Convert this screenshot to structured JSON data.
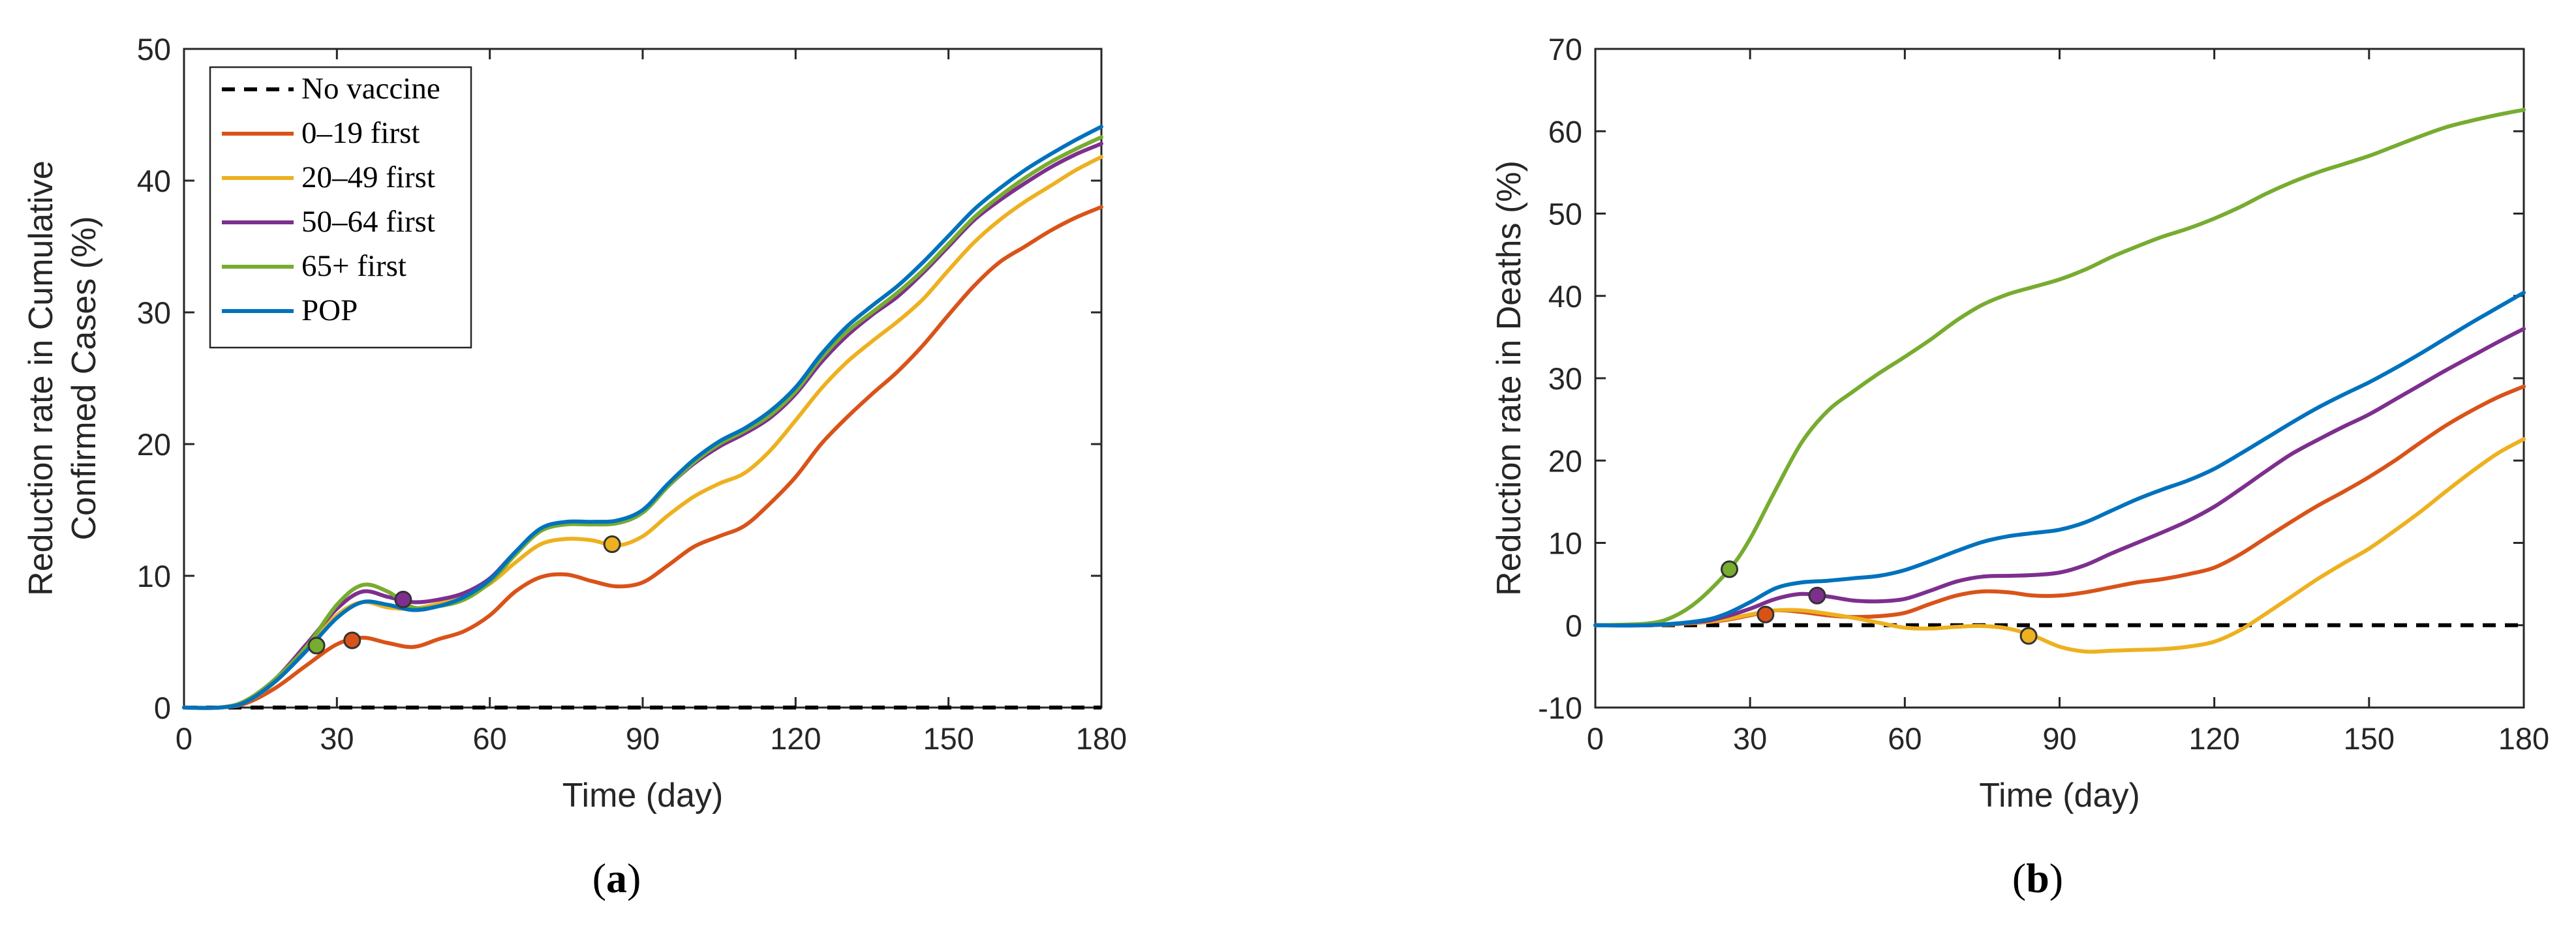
{
  "chart_data": [
    {
      "type": "line",
      "panel_label": "a",
      "xlabel": "Time (day)",
      "ylabel": "Reduction rate in Cumulative Confirmed Cases (%)",
      "ylabel_lines": [
        "Reduction rate in Cumulative",
        "Confirmed Cases (%)"
      ],
      "xlim": [
        0,
        180
      ],
      "ylim": [
        0,
        50
      ],
      "xticks": [
        0,
        30,
        60,
        90,
        120,
        150,
        180
      ],
      "yticks": [
        0,
        10,
        20,
        30,
        40,
        50
      ],
      "legend": {
        "placement": "top-left"
      },
      "series": [
        {
          "name": "No vaccine",
          "color": "#000000",
          "dashed": true,
          "x": [
            0,
            180
          ],
          "y": [
            0,
            0
          ]
        },
        {
          "name": "0–19 first",
          "color": "#D95319",
          "x": [
            0,
            7,
            12,
            18,
            24,
            30,
            35,
            40,
            45,
            50,
            55,
            60,
            65,
            70,
            75,
            80,
            85,
            90,
            95,
            100,
            105,
            110,
            115,
            120,
            125,
            130,
            135,
            140,
            145,
            150,
            155,
            160,
            165,
            170,
            175,
            180
          ],
          "y": [
            0,
            0,
            0.3,
            1.5,
            3.2,
            4.8,
            5.3,
            4.9,
            4.6,
            5.2,
            5.8,
            7.0,
            8.8,
            9.9,
            10.1,
            9.6,
            9.2,
            9.5,
            10.8,
            12.2,
            13.0,
            13.8,
            15.5,
            17.5,
            20.0,
            22.0,
            23.8,
            25.5,
            27.5,
            29.8,
            32.0,
            33.8,
            35.0,
            36.2,
            37.2,
            38.0
          ],
          "marker": {
            "x": 33,
            "y": 5.1
          }
        },
        {
          "name": "20–49 first",
          "color": "#EDB120",
          "x": [
            0,
            7,
            12,
            18,
            24,
            30,
            35,
            40,
            45,
            50,
            55,
            60,
            65,
            70,
            75,
            80,
            85,
            90,
            95,
            100,
            105,
            110,
            115,
            120,
            125,
            130,
            135,
            140,
            145,
            150,
            155,
            160,
            165,
            170,
            175,
            180
          ],
          "y": [
            0,
            0,
            0.4,
            2.0,
            4.5,
            7.0,
            8.0,
            7.6,
            7.5,
            7.9,
            8.5,
            9.4,
            11.0,
            12.4,
            12.8,
            12.7,
            12.3,
            13.0,
            14.6,
            16.0,
            17.0,
            17.8,
            19.5,
            21.8,
            24.2,
            26.2,
            27.8,
            29.3,
            31.0,
            33.2,
            35.3,
            37.0,
            38.4,
            39.6,
            40.8,
            41.8
          ],
          "marker": {
            "x": 84,
            "y": 12.4
          }
        },
        {
          "name": "50–64 first",
          "color": "#7E2F8E",
          "x": [
            0,
            7,
            12,
            18,
            24,
            30,
            35,
            40,
            45,
            50,
            55,
            60,
            65,
            70,
            75,
            80,
            85,
            90,
            95,
            100,
            105,
            110,
            115,
            120,
            125,
            130,
            135,
            140,
            145,
            150,
            155,
            160,
            165,
            170,
            175,
            180
          ],
          "y": [
            0,
            0,
            0.5,
            2.2,
            4.8,
            7.5,
            8.8,
            8.4,
            8.0,
            8.2,
            8.7,
            9.8,
            11.8,
            13.5,
            14.0,
            14.0,
            14.0,
            14.8,
            16.8,
            18.5,
            19.8,
            20.8,
            22.0,
            23.8,
            26.2,
            28.2,
            29.8,
            31.2,
            33.0,
            35.0,
            37.0,
            38.5,
            39.8,
            41.0,
            42.0,
            42.8
          ],
          "marker": {
            "x": 43,
            "y": 8.2
          }
        },
        {
          "name": "65+ first",
          "color": "#77AC30",
          "x": [
            0,
            7,
            12,
            18,
            24,
            30,
            35,
            40,
            45,
            50,
            55,
            60,
            65,
            70,
            75,
            80,
            85,
            90,
            95,
            100,
            105,
            110,
            115,
            120,
            125,
            130,
            135,
            140,
            145,
            150,
            155,
            160,
            165,
            170,
            175,
            180
          ],
          "y": [
            0,
            0,
            0.5,
            2.2,
            4.6,
            7.8,
            9.3,
            8.8,
            7.6,
            7.7,
            8.2,
            9.5,
            11.6,
            13.4,
            13.9,
            13.9,
            14.0,
            14.8,
            16.8,
            18.6,
            20.0,
            21.0,
            22.2,
            24.0,
            26.5,
            28.5,
            30.0,
            31.5,
            33.2,
            35.2,
            37.2,
            38.8,
            40.2,
            41.4,
            42.4,
            43.3
          ],
          "marker": {
            "x": 26,
            "y": 4.7
          }
        },
        {
          "name": "POP",
          "color": "#0072BD",
          "x": [
            0,
            7,
            12,
            18,
            24,
            30,
            35,
            40,
            45,
            50,
            55,
            60,
            65,
            70,
            75,
            80,
            85,
            90,
            95,
            100,
            105,
            110,
            115,
            120,
            125,
            130,
            135,
            140,
            145,
            150,
            155,
            160,
            165,
            170,
            175,
            180
          ],
          "y": [
            0,
            0,
            0.4,
            2.0,
            4.3,
            6.8,
            8.0,
            7.8,
            7.4,
            7.7,
            8.4,
            9.7,
            11.8,
            13.6,
            14.1,
            14.1,
            14.2,
            15.0,
            17.0,
            18.8,
            20.2,
            21.2,
            22.5,
            24.3,
            26.8,
            28.9,
            30.5,
            32.0,
            33.8,
            35.8,
            37.8,
            39.4,
            40.8,
            42.0,
            43.1,
            44.1
          ]
        }
      ]
    },
    {
      "type": "line",
      "panel_label": "b",
      "xlabel": "Time (day)",
      "ylabel": "Reduction rate in Deaths (%)",
      "xlim": [
        0,
        180
      ],
      "ylim": [
        -10,
        70
      ],
      "xticks": [
        0,
        30,
        60,
        90,
        120,
        150,
        180
      ],
      "yticks": [
        -10,
        0,
        10,
        20,
        30,
        40,
        50,
        60,
        70
      ],
      "series": [
        {
          "name": "No vaccine",
          "color": "#000000",
          "dashed": true,
          "x": [
            0,
            180
          ],
          "y": [
            0,
            0
          ]
        },
        {
          "name": "0–19 first",
          "color": "#D95319",
          "x": [
            0,
            10,
            20,
            25,
            30,
            35,
            40,
            45,
            50,
            55,
            60,
            65,
            70,
            75,
            80,
            85,
            90,
            95,
            100,
            105,
            110,
            115,
            120,
            125,
            130,
            135,
            140,
            145,
            150,
            155,
            160,
            165,
            170,
            175,
            180
          ],
          "y": [
            0,
            0,
            0.3,
            0.6,
            1.2,
            1.8,
            1.6,
            1.2,
            1.0,
            1.1,
            1.5,
            2.6,
            3.6,
            4.1,
            4.0,
            3.6,
            3.6,
            4.0,
            4.6,
            5.2,
            5.6,
            6.2,
            7.0,
            8.6,
            10.6,
            12.6,
            14.5,
            16.2,
            18.0,
            20.0,
            22.2,
            24.3,
            26.1,
            27.7,
            29.0
          ],
          "marker": {
            "x": 33,
            "y": 1.3
          }
        },
        {
          "name": "20–49 first",
          "color": "#EDB120",
          "x": [
            0,
            10,
            20,
            25,
            30,
            35,
            40,
            45,
            50,
            55,
            60,
            65,
            70,
            75,
            80,
            85,
            90,
            95,
            100,
            105,
            110,
            115,
            120,
            125,
            130,
            135,
            140,
            145,
            150,
            155,
            160,
            165,
            170,
            175,
            180
          ],
          "y": [
            0,
            0,
            0.3,
            0.7,
            1.3,
            1.8,
            1.8,
            1.4,
            0.9,
            0.3,
            -0.3,
            -0.4,
            -0.2,
            -0.1,
            -0.4,
            -1.3,
            -2.6,
            -3.2,
            -3.1,
            -3.0,
            -2.9,
            -2.6,
            -2.0,
            -0.6,
            1.4,
            3.5,
            5.6,
            7.5,
            9.3,
            11.5,
            13.8,
            16.3,
            18.7,
            20.9,
            22.6
          ],
          "marker": {
            "x": 84,
            "y": -1.3
          }
        },
        {
          "name": "50–64 first",
          "color": "#7E2F8E",
          "x": [
            0,
            10,
            20,
            25,
            30,
            35,
            40,
            45,
            50,
            55,
            60,
            65,
            70,
            75,
            80,
            85,
            90,
            95,
            100,
            105,
            110,
            115,
            120,
            125,
            130,
            135,
            140,
            145,
            150,
            155,
            160,
            165,
            170,
            175,
            180
          ],
          "y": [
            0,
            0,
            0.4,
            1.0,
            2.0,
            3.2,
            3.8,
            3.5,
            3.0,
            2.9,
            3.2,
            4.2,
            5.3,
            5.9,
            6.0,
            6.1,
            6.4,
            7.3,
            8.7,
            10.0,
            11.3,
            12.7,
            14.4,
            16.5,
            18.7,
            20.8,
            22.5,
            24.1,
            25.6,
            27.4,
            29.2,
            31.0,
            32.7,
            34.4,
            36.0
          ],
          "marker": {
            "x": 43,
            "y": 3.6
          }
        },
        {
          "name": "65+ first",
          "color": "#77AC30",
          "x": [
            0,
            10,
            15,
            20,
            26,
            30,
            35,
            40,
            45,
            50,
            55,
            60,
            65,
            70,
            75,
            80,
            85,
            90,
            95,
            100,
            105,
            110,
            115,
            120,
            125,
            130,
            135,
            140,
            145,
            150,
            155,
            160,
            165,
            170,
            175,
            180
          ],
          "y": [
            0,
            0.2,
            1.0,
            3.0,
            6.8,
            10.5,
            16.5,
            22.2,
            26.0,
            28.4,
            30.6,
            32.6,
            34.7,
            37.0,
            38.9,
            40.2,
            41.1,
            42.0,
            43.2,
            44.7,
            46.0,
            47.2,
            48.2,
            49.4,
            50.8,
            52.4,
            53.8,
            55.0,
            56.0,
            57.0,
            58.2,
            59.4,
            60.5,
            61.3,
            62.0,
            62.6
          ],
          "marker": {
            "x": 26,
            "y": 6.8
          }
        },
        {
          "name": "POP",
          "color": "#0072BD",
          "x": [
            0,
            10,
            20,
            25,
            30,
            35,
            40,
            45,
            50,
            55,
            60,
            65,
            70,
            75,
            80,
            85,
            90,
            95,
            100,
            105,
            110,
            115,
            120,
            125,
            130,
            135,
            140,
            145,
            150,
            155,
            160,
            165,
            170,
            175,
            180
          ],
          "y": [
            0,
            0,
            0.5,
            1.3,
            2.8,
            4.5,
            5.2,
            5.4,
            5.7,
            6.0,
            6.7,
            7.8,
            9.0,
            10.1,
            10.8,
            11.2,
            11.6,
            12.5,
            13.9,
            15.3,
            16.5,
            17.6,
            19.0,
            20.8,
            22.7,
            24.6,
            26.4,
            28.0,
            29.5,
            31.2,
            33.0,
            34.9,
            36.8,
            38.6,
            40.4
          ]
        }
      ]
    }
  ]
}
